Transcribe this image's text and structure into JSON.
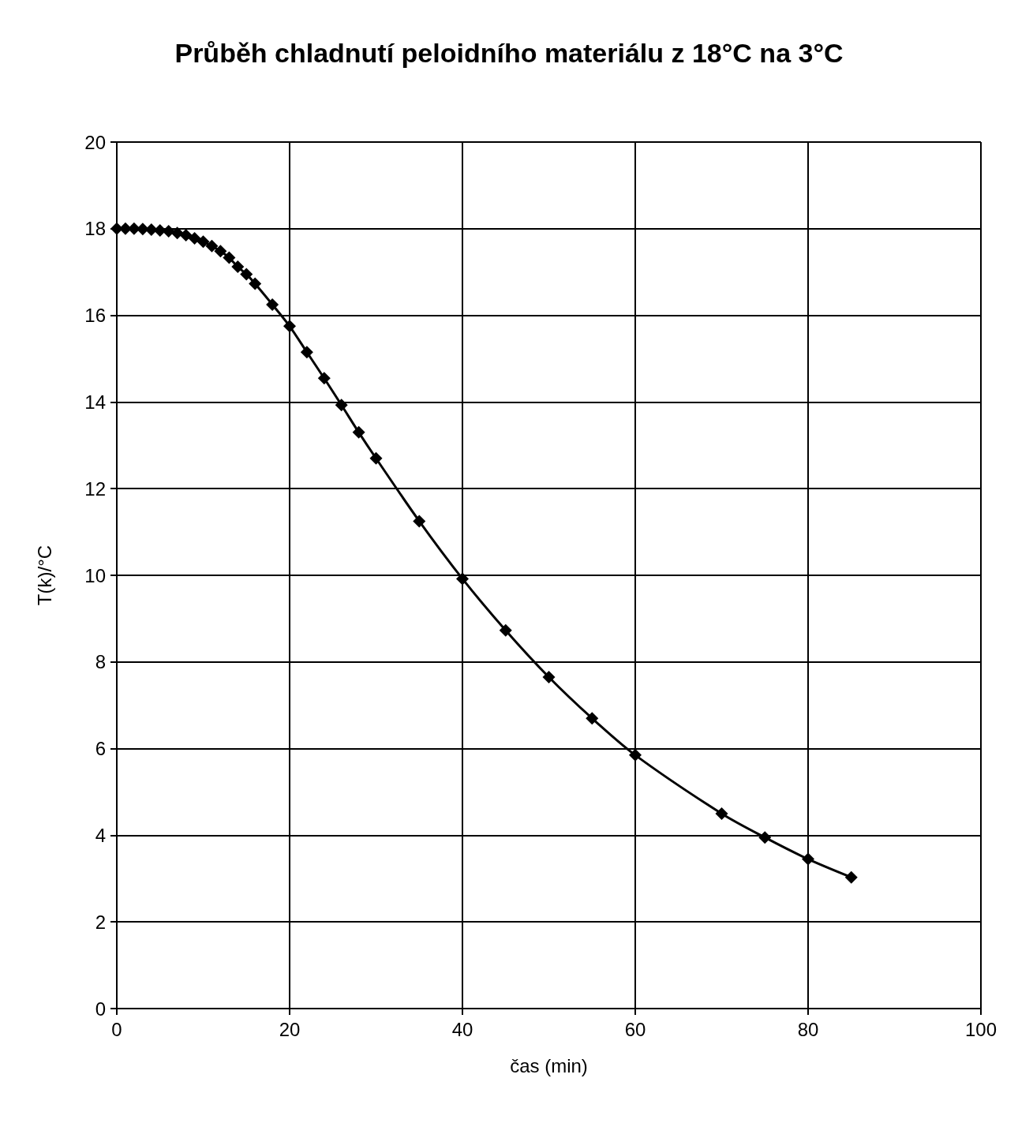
{
  "chart_data": {
    "type": "line",
    "title": "Průběh chladnutí peloidního materiálu z 18°C na 3°C",
    "xlabel": "čas (min)",
    "ylabel": "T(k)/°C",
    "x": [
      0,
      1,
      2,
      3,
      4,
      5,
      6,
      7,
      8,
      9,
      10,
      11,
      12,
      13,
      14,
      15,
      16,
      18,
      20,
      22,
      24,
      26,
      28,
      30,
      35,
      40,
      45,
      50,
      55,
      60,
      70,
      75,
      80,
      85
    ],
    "series": [
      {
        "color": "#000000",
        "values": [
          18,
          18,
          18,
          17.99,
          17.98,
          17.96,
          17.94,
          17.9,
          17.85,
          17.78,
          17.7,
          17.6,
          17.48,
          17.33,
          17.12,
          16.95,
          16.73,
          16.25,
          15.75,
          15.15,
          14.55,
          13.93,
          13.3,
          12.7,
          11.25,
          9.92,
          8.73,
          7.65,
          6.7,
          5.85,
          4.5,
          3.95,
          3.45,
          3.03
        ]
      }
    ],
    "xlim": [
      0,
      100
    ],
    "xticks": [
      0,
      20,
      40,
      60,
      80,
      100
    ],
    "ylim": [
      0,
      20
    ],
    "yticks": [
      0,
      2,
      4,
      6,
      8,
      10,
      12,
      14,
      16,
      18,
      20
    ],
    "grid": true,
    "marker": "diamond",
    "line_style": "solid"
  }
}
